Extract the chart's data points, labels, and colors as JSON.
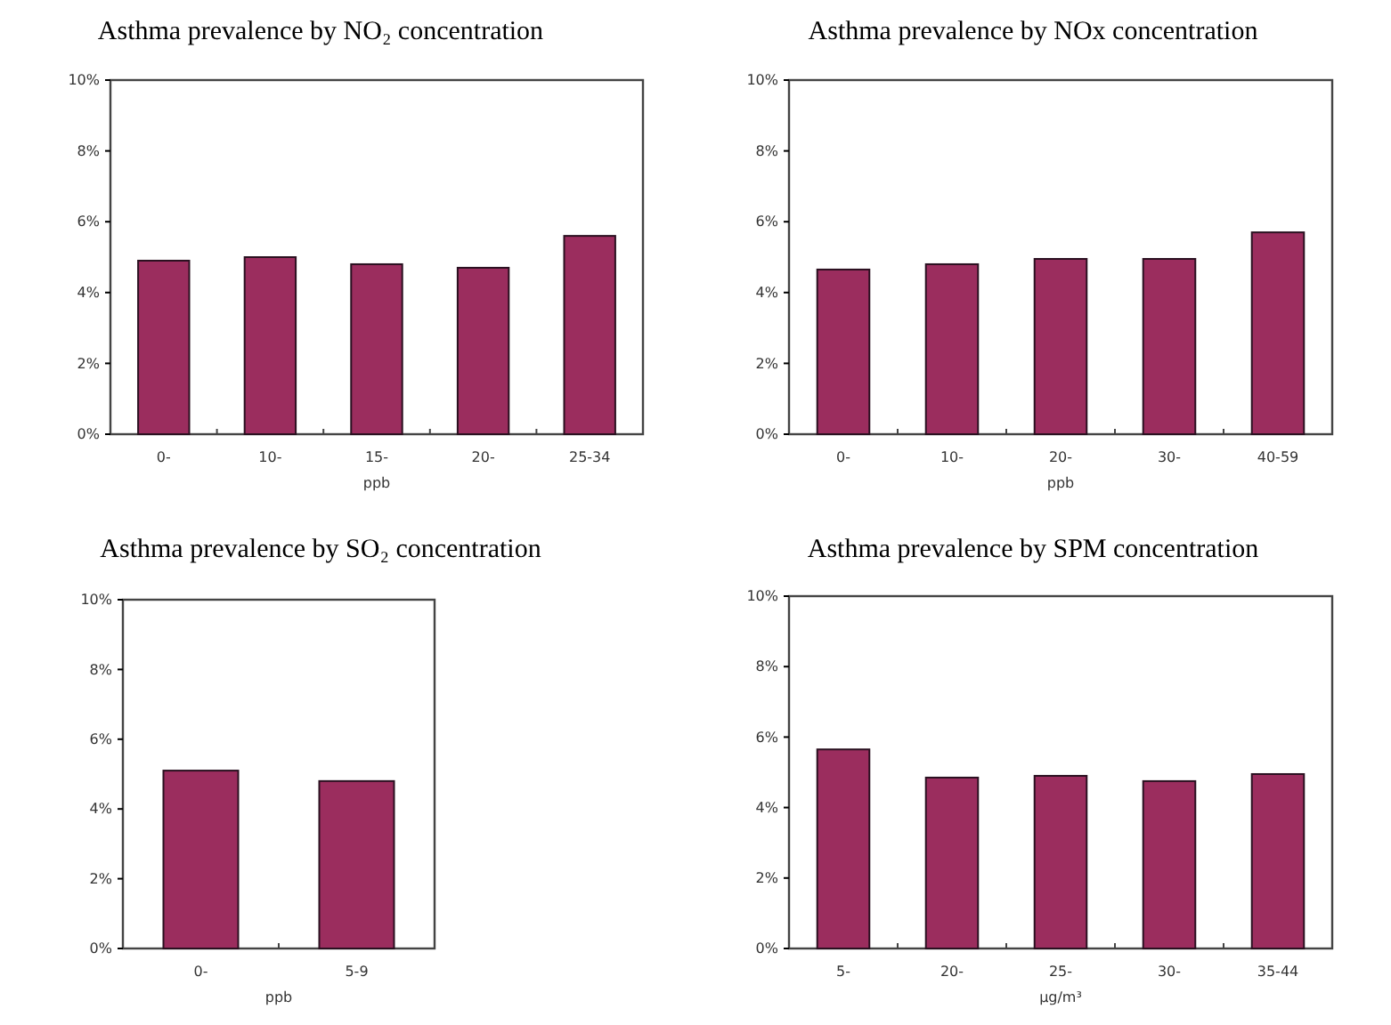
{
  "chart_data": [
    {
      "type": "bar",
      "title": "Asthma prevalence by NO₂ concentration",
      "xlabel": "ppb",
      "categories": [
        "0-",
        "10-",
        "15-",
        "20-",
        "25-34"
      ],
      "values": [
        4.9,
        5.0,
        4.8,
        4.7,
        5.6
      ],
      "color": "#9b2d5e",
      "ylim": [
        0,
        10
      ],
      "yticks": [
        {
          "value": 0,
          "label": "0%"
        },
        {
          "value": 2,
          "label": "2%"
        },
        {
          "value": 4,
          "label": "4%"
        },
        {
          "value": 6,
          "label": "6%"
        },
        {
          "value": 8,
          "label": "8%"
        },
        {
          "value": 10,
          "label": "10%"
        }
      ],
      "grid": false
    },
    {
      "type": "bar",
      "title": "Asthma prevalence by NOx concentration",
      "xlabel": "ppb",
      "categories": [
        "0-",
        "10-",
        "20-",
        "30-",
        "40-59"
      ],
      "values": [
        4.65,
        4.8,
        4.95,
        4.95,
        5.7
      ],
      "color": "#9b2d5e",
      "ylim": [
        0,
        10
      ],
      "yticks": [
        {
          "value": 0,
          "label": "0%"
        },
        {
          "value": 2,
          "label": "2%"
        },
        {
          "value": 4,
          "label": "4%"
        },
        {
          "value": 6,
          "label": "6%"
        },
        {
          "value": 8,
          "label": "8%"
        },
        {
          "value": 10,
          "label": "10%"
        }
      ],
      "grid": false
    },
    {
      "type": "bar",
      "title": "Asthma prevalence by SO₂ concentration",
      "xlabel": "ppb",
      "categories": [
        "0-",
        "5-9"
      ],
      "values": [
        5.1,
        4.8
      ],
      "color": "#9b2d5e",
      "ylim": [
        0,
        10
      ],
      "yticks": [
        {
          "value": 0,
          "label": "0%"
        },
        {
          "value": 2,
          "label": "2%"
        },
        {
          "value": 4,
          "label": "4%"
        },
        {
          "value": 6,
          "label": "6%"
        },
        {
          "value": 8,
          "label": "8%"
        },
        {
          "value": 10,
          "label": "10%"
        }
      ],
      "grid": false
    },
    {
      "type": "bar",
      "title": "Asthma prevalence by SPM concentration",
      "xlabel": "μg/m³",
      "categories": [
        "5-",
        "20-",
        "25-",
        "30-",
        "35-44"
      ],
      "values": [
        5.65,
        4.85,
        4.9,
        4.75,
        4.95
      ],
      "color": "#9b2d5e",
      "ylim": [
        0,
        10
      ],
      "yticks": [
        {
          "value": 0,
          "label": "0%"
        },
        {
          "value": 2,
          "label": "2%"
        },
        {
          "value": 4,
          "label": "4%"
        },
        {
          "value": 6,
          "label": "6%"
        },
        {
          "value": 8,
          "label": "8%"
        },
        {
          "value": 10,
          "label": "10%"
        }
      ],
      "grid": false
    }
  ]
}
